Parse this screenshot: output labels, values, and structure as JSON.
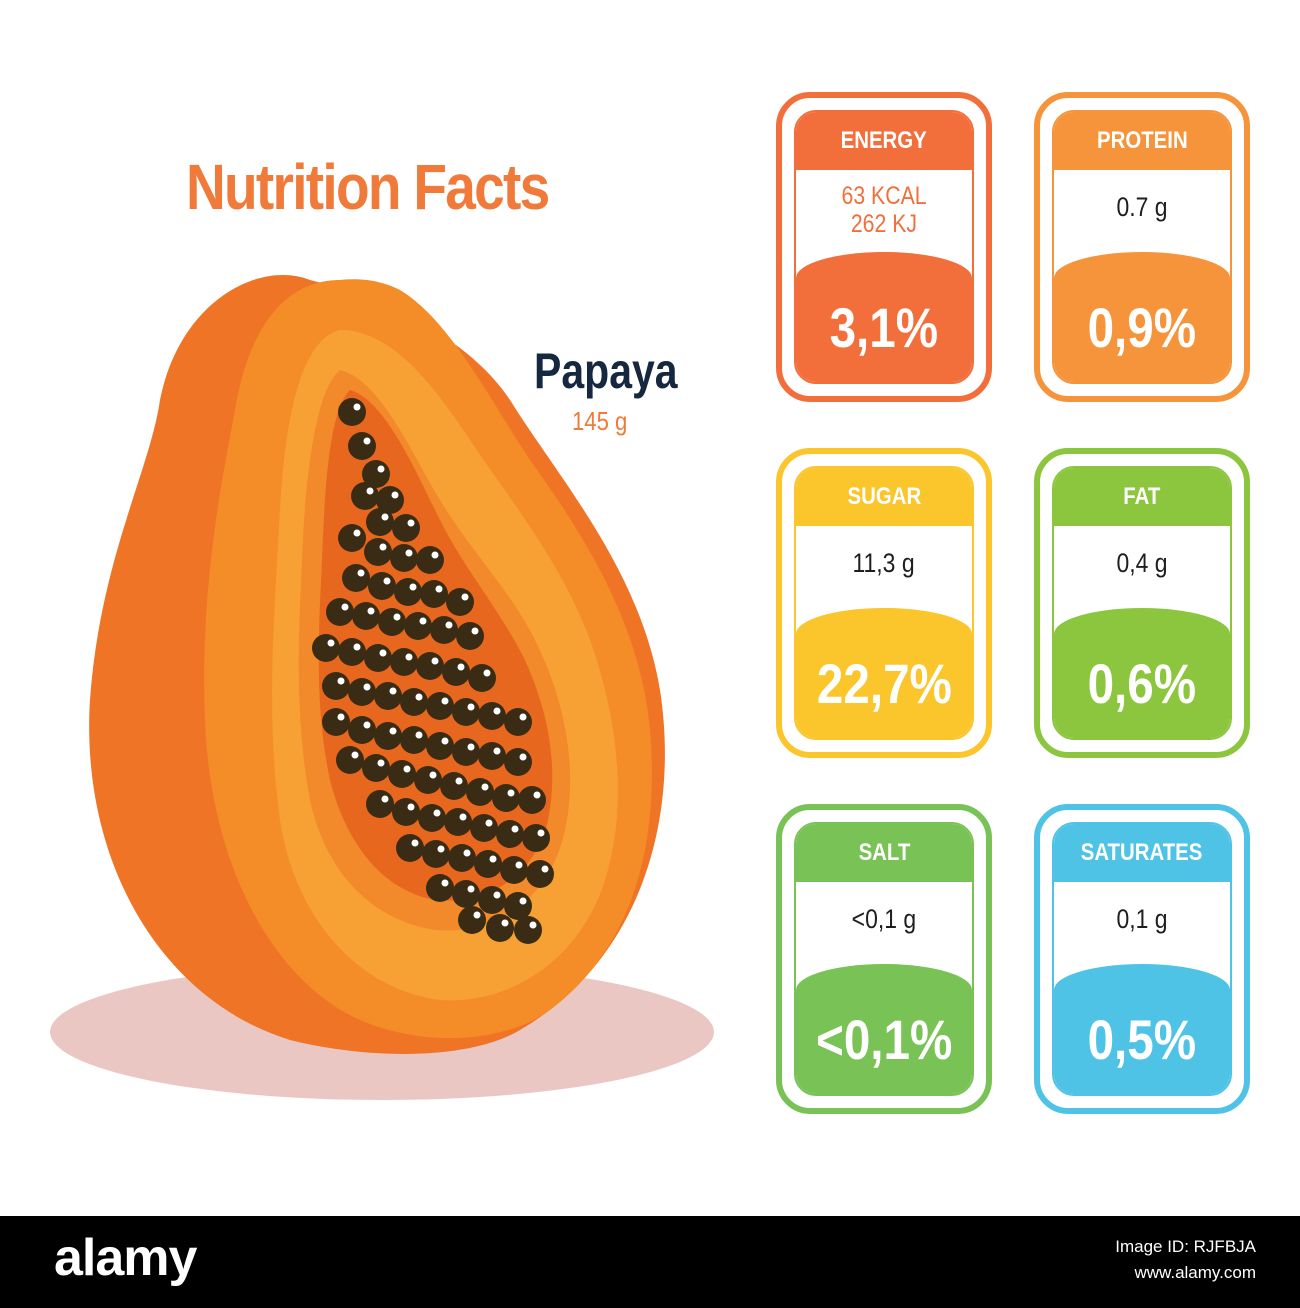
{
  "title": {
    "text": "Nutrition Facts",
    "color": "#f07a3a"
  },
  "fruit": {
    "name": "Papaya",
    "weight": "145 g",
    "weight_color": "#f07a3a"
  },
  "cards": [
    {
      "label": "ENERGY",
      "value_line1": "63 KCAL",
      "value_line2": "262 KJ",
      "percent": "3,1%",
      "color": "#f26f3b",
      "value_color": "#f26f3b"
    },
    {
      "label": "PROTEIN",
      "value_line1": "0.7 g",
      "percent": "0,9%",
      "color": "#f5943a"
    },
    {
      "label": "SUGAR",
      "value_line1": "11,3 g",
      "percent": "22,7%",
      "color": "#fbc52c"
    },
    {
      "label": "FAT",
      "value_line1": "0,4 g",
      "percent": "0,6%",
      "color": "#8cc63f"
    },
    {
      "label": "SALT",
      "value_line1": "<0,1 g",
      "percent": "<0,1%",
      "color": "#78c256"
    },
    {
      "label": "SATURATES",
      "value_line1": "0,1 g",
      "percent": "0,5%",
      "color": "#4fc3e6"
    }
  ],
  "watermark": {
    "logo": "alamy",
    "image_id": "Image ID: RJFBJA",
    "site": "www.alamy.com"
  }
}
